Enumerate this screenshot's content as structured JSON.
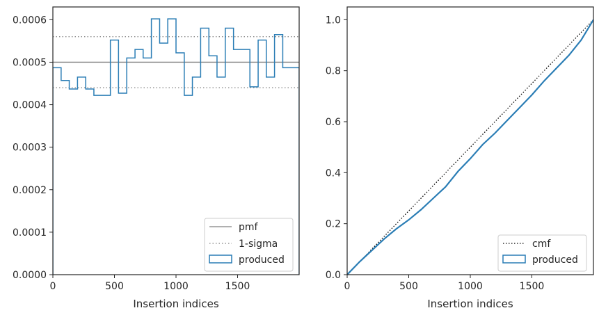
{
  "colors": {
    "produced": "#2a7db5",
    "pmf": "#808080",
    "sigma": "#808080",
    "cmf": "#000000",
    "axes": "#262626"
  },
  "chart_data": [
    {
      "type": "line",
      "panel": "left",
      "xlabel": "Insertion indices",
      "ylabel": "",
      "xlim": [
        0,
        2000
      ],
      "ylim": [
        0,
        0.00063
      ],
      "xticks": [
        0,
        500,
        1000,
        1500
      ],
      "xtick_labels": [
        "0",
        "500",
        "1000",
        "1500"
      ],
      "yticks": [
        0,
        0.0001,
        0.0002,
        0.0003,
        0.0004,
        0.0005,
        0.0006
      ],
      "ytick_labels": [
        "0.0000",
        "0.0001",
        "0.0002",
        "0.0003",
        "0.0004",
        "0.0005",
        "0.0006"
      ],
      "legend_position": "bottom-right",
      "reference_lines": [
        {
          "name": "pmf",
          "style": "solid",
          "value": 0.0005
        },
        {
          "name": "1-sigma",
          "style": "dotted",
          "values": [
            0.00044,
            0.00056
          ]
        }
      ],
      "series": [
        {
          "name": "produced",
          "style": "step",
          "bin_edges": [
            0,
            67,
            133,
            200,
            267,
            333,
            400,
            467,
            533,
            600,
            667,
            733,
            800,
            867,
            933,
            1000,
            1067,
            1133,
            1200,
            1267,
            1333,
            1400,
            1467,
            1533,
            1600,
            1667,
            1733,
            1800,
            1867,
            1933,
            2000
          ],
          "values": [
            0.000487,
            0.000457,
            0.000437,
            0.000465,
            0.000437,
            0.000422,
            0.000422,
            0.000552,
            0.000427,
            0.00051,
            0.00053,
            0.00051,
            0.000602,
            0.000545,
            0.000602,
            0.000522,
            0.000422,
            0.000465,
            0.00058,
            0.000515,
            0.000465,
            0.00058,
            0.00053,
            0.00053,
            0.000442,
            0.000552,
            0.000465,
            0.000565,
            0.000487,
            0.000487
          ]
        }
      ],
      "legend": [
        "pmf",
        "1-sigma",
        "produced"
      ]
    },
    {
      "type": "line",
      "panel": "right",
      "xlabel": "Insertion indices",
      "ylabel": "",
      "xlim": [
        0,
        2000
      ],
      "ylim": [
        0,
        1.05
      ],
      "xticks": [
        0,
        500,
        1000,
        1500
      ],
      "xtick_labels": [
        "0",
        "500",
        "1000",
        "1500"
      ],
      "yticks": [
        0,
        0.2,
        0.4,
        0.6,
        0.8,
        1.0
      ],
      "ytick_labels": [
        "0.0",
        "0.2",
        "0.4",
        "0.6",
        "0.8",
        "1.0"
      ],
      "legend_position": "bottom-right",
      "series": [
        {
          "name": "cmf",
          "style": "dotted",
          "x": [
            0,
            2000
          ],
          "y": [
            0,
            1.0
          ]
        },
        {
          "name": "produced",
          "style": "step",
          "x": [
            0,
            100,
            200,
            300,
            400,
            500,
            600,
            700,
            800,
            900,
            1000,
            1100,
            1200,
            1300,
            1400,
            1500,
            1600,
            1700,
            1800,
            1900,
            2000
          ],
          "y": [
            0,
            0.05,
            0.095,
            0.14,
            0.18,
            0.215,
            0.255,
            0.3,
            0.345,
            0.405,
            0.455,
            0.51,
            0.555,
            0.605,
            0.655,
            0.705,
            0.76,
            0.81,
            0.86,
            0.92,
            1.0
          ]
        }
      ],
      "legend": [
        "cmf",
        "produced"
      ]
    }
  ]
}
